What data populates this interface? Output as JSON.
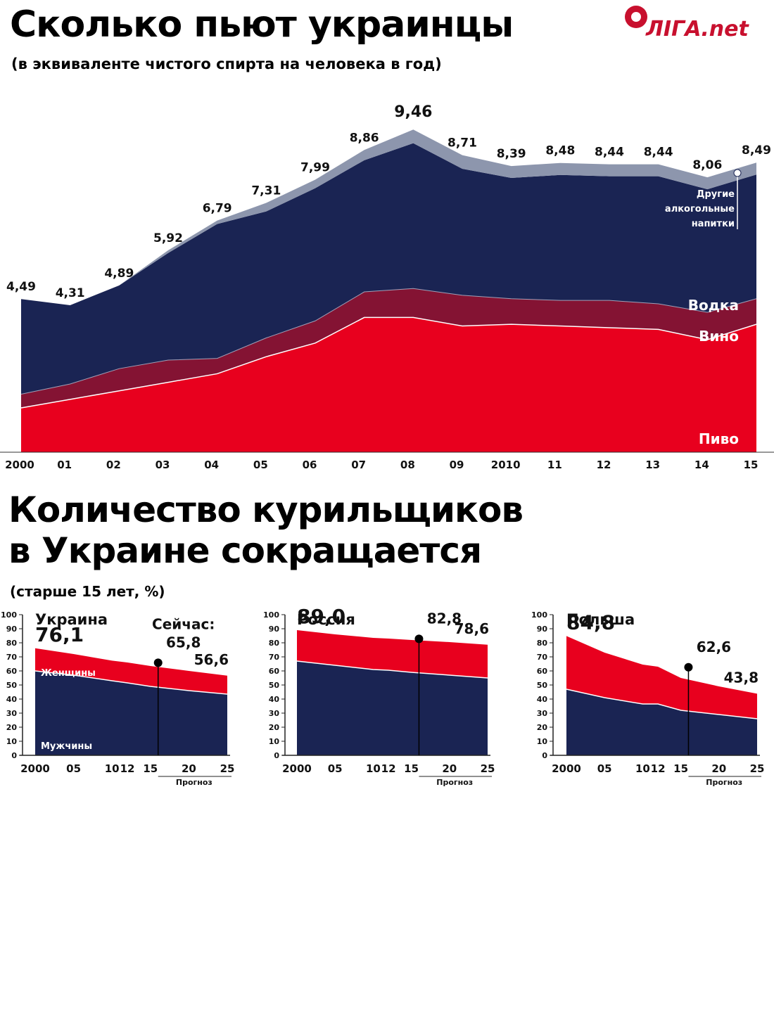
{
  "logo": {
    "text": "ЛIГА.net"
  },
  "alcohol": {
    "title": "Сколько пьют украинцы",
    "subtitle": "(в эквиваленте чистого спирта на человека в год)"
  },
  "smoking": {
    "title_line1": "Количество курильщиков",
    "title_line2": "в Украине сокращается",
    "subtitle": "(старше 15 лет, %)"
  },
  "colors": {
    "beer": "#e8001e",
    "wine": "#841333",
    "vodka": "#1a2453",
    "other": "#8d96ad",
    "men": "#1a2453",
    "women": "#e8001e"
  },
  "chart_data": [
    {
      "type": "area",
      "title": "Сколько пьют украинцы",
      "subtitle": "(в эквиваленте чистого спирта на человека в год)",
      "x_tick_labels": [
        "2000",
        "01",
        "02",
        "03",
        "04",
        "05",
        "06",
        "07",
        "08",
        "09",
        "2010",
        "11",
        "12",
        "13",
        "14",
        "15"
      ],
      "totals": [
        4.49,
        4.31,
        4.89,
        5.92,
        6.79,
        7.31,
        7.99,
        8.86,
        9.46,
        8.71,
        8.39,
        8.48,
        8.44,
        8.44,
        8.06,
        8.49
      ],
      "total_labels": [
        "4,49",
        "4,31",
        "4,89",
        "5,92",
        "6,79",
        "7,31",
        "7,99",
        "8,86",
        "9,46",
        "8,71",
        "8,39",
        "8,48",
        "8,44",
        "8,44",
        "8,06",
        "8,49"
      ],
      "stacked": true,
      "ylim": [
        0,
        10
      ],
      "series": [
        {
          "name": "Пиво",
          "color": "#e8001e",
          "values": [
            1.3,
            1.55,
            1.8,
            2.05,
            2.3,
            2.8,
            3.2,
            3.95,
            3.95,
            3.7,
            3.75,
            3.7,
            3.65,
            3.6,
            3.3,
            3.75
          ]
        },
        {
          "name": "Вино",
          "color": "#841333",
          "values": [
            0.4,
            0.45,
            0.65,
            0.65,
            0.45,
            0.55,
            0.65,
            0.75,
            0.85,
            0.9,
            0.75,
            0.75,
            0.8,
            0.75,
            0.8,
            0.75
          ]
        },
        {
          "name": "Водка",
          "color": "#1a2453",
          "values": [
            2.79,
            2.31,
            2.44,
            3.14,
            3.94,
            3.71,
            3.89,
            3.86,
            4.26,
            3.71,
            3.54,
            3.68,
            3.64,
            3.74,
            3.61,
            3.64
          ]
        },
        {
          "name": "Другие алкогольные напитки",
          "color": "#8d96ad",
          "values": [
            0,
            0,
            0,
            0.08,
            0.1,
            0.25,
            0.25,
            0.3,
            0.4,
            0.4,
            0.35,
            0.35,
            0.35,
            0.35,
            0.35,
            0.35
          ]
        }
      ],
      "series_labels": {
        "beer": "Пиво",
        "wine": "Вино",
        "vodka": "Водка",
        "other_line1": "Другие",
        "other_line2": "алкогольные",
        "other_line3": "напитки"
      }
    },
    {
      "type": "area",
      "title": "Украина",
      "x": [
        2000,
        2005,
        2010,
        2012,
        2015,
        2020,
        2025
      ],
      "x_tick_labels": [
        "2000",
        "05",
        "10",
        "12",
        "15",
        "20",
        "25"
      ],
      "forecast_label": "Прогноз",
      "ylim": [
        0,
        100
      ],
      "y_ticks": [
        "0",
        "10",
        "20",
        "30",
        "40",
        "50",
        "60",
        "70",
        "80",
        "90",
        "100"
      ],
      "series": [
        {
          "name": "Мужчины",
          "color": "#1a2453",
          "values": [
            60,
            57,
            53,
            51.5,
            49,
            46,
            43.5
          ]
        },
        {
          "name": "Женщины",
          "color": "#e8001e",
          "values": [
            76.1,
            72,
            67.3,
            66,
            63.5,
            60,
            56.6
          ]
        }
      ],
      "annotations": {
        "start_value": "76,1",
        "now_label": "Сейчас:",
        "now_value": "65,8",
        "now_year": 2016,
        "end_value": "56,6",
        "men_label": "Мужчины",
        "women_label": "Женщины"
      }
    },
    {
      "type": "area",
      "title": "Россия",
      "x": [
        2000,
        2005,
        2010,
        2012,
        2015,
        2020,
        2025
      ],
      "x_tick_labels": [
        "2000",
        "05",
        "10",
        "12",
        "15",
        "20",
        "25"
      ],
      "forecast_label": "Прогноз",
      "ylim": [
        0,
        100
      ],
      "y_ticks": [
        "0",
        "10",
        "20",
        "30",
        "40",
        "50",
        "60",
        "70",
        "80",
        "90",
        "100"
      ],
      "series": [
        {
          "name": "Мужчины",
          "color": "#1a2453",
          "values": [
            67,
            64,
            61,
            60.5,
            59,
            57,
            55
          ]
        },
        {
          "name": "Женщины",
          "color": "#e8001e",
          "values": [
            89.0,
            86,
            83.5,
            83,
            82,
            80.5,
            78.6
          ]
        }
      ],
      "annotations": {
        "start_value": "89,0",
        "now_value": "82,8",
        "now_year": 2016,
        "end_value": "78,6"
      }
    },
    {
      "type": "area",
      "title": "Польша",
      "x": [
        2000,
        2005,
        2010,
        2012,
        2015,
        2020,
        2025
      ],
      "x_tick_labels": [
        "2000",
        "05",
        "10",
        "12",
        "15",
        "20",
        "25"
      ],
      "forecast_label": "Прогноз",
      "ylim": [
        0,
        100
      ],
      "y_ticks": [
        "0",
        "10",
        "20",
        "30",
        "40",
        "50",
        "60",
        "70",
        "80",
        "90",
        "100"
      ],
      "series": [
        {
          "name": "Мужчины",
          "color": "#1a2453",
          "values": [
            47,
            41,
            36.5,
            36.5,
            32,
            29,
            26
          ]
        },
        {
          "name": "Женщины",
          "color": "#e8001e",
          "values": [
            84.8,
            73,
            64.5,
            63,
            55,
            49,
            43.8
          ]
        }
      ],
      "annotations": {
        "start_value": "84,8",
        "now_value": "62,6",
        "now_year": 2016,
        "end_value": "43,8"
      }
    }
  ]
}
